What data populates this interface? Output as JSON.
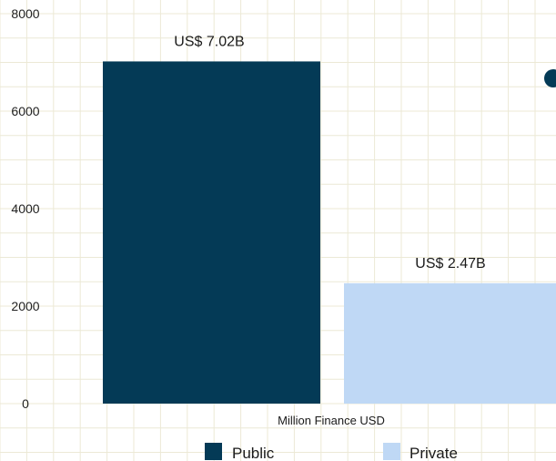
{
  "chart_data": {
    "type": "bar",
    "categories": [
      "Public",
      "Private"
    ],
    "values": [
      7020,
      2470
    ],
    "data_labels": [
      "US$ 7.02B",
      "US$ 2.47B"
    ],
    "xlabel": "Million Finance USD",
    "ylabel": "",
    "ylim": [
      0,
      8000
    ],
    "yticks": [
      0,
      2000,
      4000,
      6000,
      8000
    ],
    "grid": true,
    "legend": {
      "position": "bottom",
      "entries": [
        "Public",
        "Private"
      ]
    },
    "colors": {
      "Public": "#043a56",
      "Private": "#bfd8f5",
      "grid": "#ece9d6"
    }
  }
}
